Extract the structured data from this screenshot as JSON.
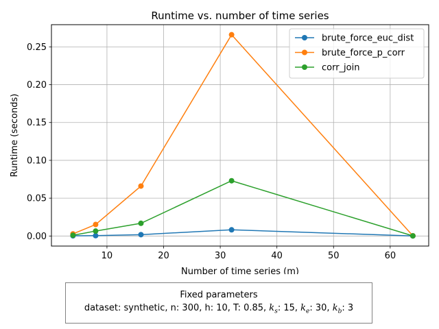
{
  "chart_data": {
    "type": "line",
    "title": "Runtime vs. number of time series",
    "xlabel": "Number of time series (m)",
    "ylabel": "Runtime (seconds)",
    "x": [
      4,
      8,
      16,
      32,
      64
    ],
    "xlim": [
      0.2,
      66.8
    ],
    "ylim": [
      -0.0133,
      0.2793
    ],
    "xticks": [
      10,
      20,
      30,
      40,
      50,
      60
    ],
    "yticks": [
      0.0,
      0.05,
      0.1,
      0.15,
      0.2,
      0.25
    ],
    "ytick_labels": [
      "0.00",
      "0.05",
      "0.10",
      "0.15",
      "0.20",
      "0.25"
    ],
    "grid": true,
    "legend_position": "top-right",
    "series": [
      {
        "name": "brute_force_euc_dist",
        "color": "#1f77b4",
        "values": [
          0.0003,
          0.0005,
          0.0018,
          0.0082,
          0.0001
        ]
      },
      {
        "name": "brute_force_p_corr",
        "color": "#ff7f0e",
        "values": [
          0.0028,
          0.0152,
          0.066,
          0.266,
          0.0003
        ]
      },
      {
        "name": "corr_join",
        "color": "#2ca02c",
        "values": [
          0.001,
          0.0065,
          0.0168,
          0.073,
          0.0002
        ]
      }
    ]
  },
  "fixed_parameters": {
    "title": "Fixed parameters",
    "prefix": "dataset: synthetic, n: 300, h: 10, T: 0.85, ",
    "ks_label": "k",
    "ks_sub": "s",
    "ks_value": ": 15, ",
    "ke_label": "k",
    "ke_sub": "e",
    "ke_value": ": 30, ",
    "kb_label": "k",
    "kb_sub": "b",
    "kb_value": ": 3"
  }
}
